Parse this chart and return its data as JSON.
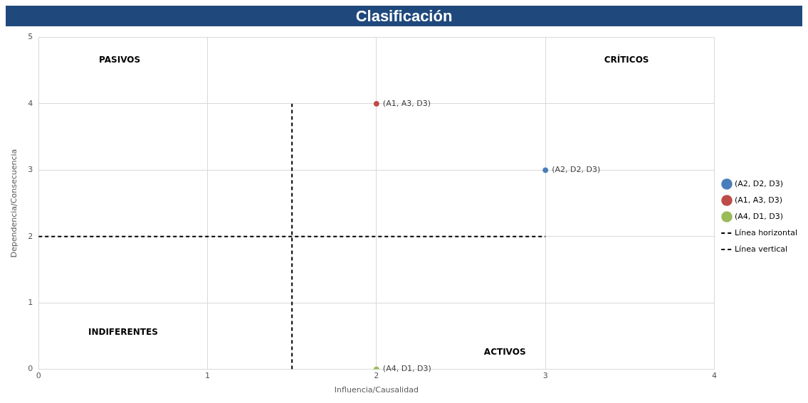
{
  "chart_data": {
    "type": "scatter",
    "title": "Clasificación",
    "xlabel": "Influencia/Causalidad",
    "ylabel": "Dependencia/Consecuencia",
    "xlim": [
      0,
      4
    ],
    "xticks": [
      0,
      1,
      2,
      3,
      4
    ],
    "ylim": [
      0,
      5
    ],
    "yticks": [
      0,
      1,
      2,
      3,
      4,
      5
    ],
    "grid": true,
    "legend": "right",
    "marker": "circle",
    "series": [
      {
        "name": "(A2, D2, D3)",
        "color": "#4a7ebb",
        "x": [
          3
        ],
        "values": [
          3
        ]
      },
      {
        "name": "(A1, A3, D3)",
        "color": "#be4b48",
        "x": [
          2
        ],
        "values": [
          4
        ]
      },
      {
        "name": "(A4, D1, D3)",
        "color": "#9bbb59",
        "x": [
          2
        ],
        "values": [
          0
        ]
      },
      {
        "name": "Línea horizontal",
        "type": "line",
        "color": "#000000",
        "marker": "none",
        "line_style": "dashed",
        "x": [
          0,
          3
        ],
        "values": [
          2,
          2
        ]
      },
      {
        "name": "Línea vertical",
        "type": "line",
        "color": "#000000",
        "marker": "none",
        "line_style": "dashed",
        "x": [
          1.5,
          1.5
        ],
        "values": [
          0,
          4
        ]
      }
    ],
    "annotations": [
      "PASIVOS",
      "CRÍTICOS",
      "INDIFERENTES",
      "ACTIVOS"
    ]
  }
}
